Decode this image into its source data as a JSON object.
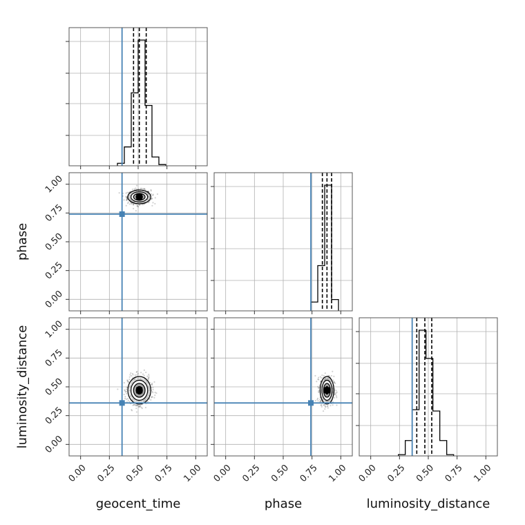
{
  "chart_data": {
    "type": "corner",
    "parameters": [
      "geocent_time",
      "phase",
      "luminosity_distance"
    ],
    "axis_range": [
      -0.1,
      1.1
    ],
    "ticks": [
      0.0,
      0.25,
      0.5,
      0.75,
      1.0
    ],
    "tick_labels": [
      "0.00",
      "0.25",
      "0.50",
      "0.75",
      "1.00"
    ],
    "grid": true,
    "truths": {
      "color": "#4682b4",
      "values": {
        "geocent_time": 0.36,
        "phase": 0.74,
        "luminosity_distance": 0.36
      }
    },
    "histogram_color": "#000000",
    "histograms": [
      {
        "parameter": "geocent_time",
        "bin_edges": [
          0.32,
          0.38,
          0.44,
          0.5,
          0.56,
          0.62,
          0.68,
          0.74
        ],
        "counts": [
          0.02,
          0.15,
          0.58,
          1.0,
          0.48,
          0.07,
          0.01
        ],
        "quantiles": [
          0.46,
          0.51,
          0.57
        ]
      },
      {
        "parameter": "phase",
        "bin_edges": [
          0.74,
          0.8,
          0.86,
          0.92,
          0.98
        ],
        "counts": [
          0.07,
          0.36,
          1.0,
          0.09
        ],
        "quantiles": [
          0.84,
          0.88,
          0.92
        ]
      },
      {
        "parameter": "luminosity_distance",
        "bin_edges": [
          0.24,
          0.3,
          0.36,
          0.42,
          0.48,
          0.54,
          0.6,
          0.66,
          0.72
        ],
        "counts": [
          0.01,
          0.12,
          0.36,
          0.98,
          0.76,
          0.35,
          0.12,
          0.01
        ],
        "quantiles": [
          0.4,
          0.47,
          0.53
        ]
      }
    ],
    "scatter_panels": [
      {
        "x": "geocent_time",
        "y": "phase",
        "center": [
          0.51,
          0.89
        ],
        "spread": [
          0.05,
          0.03
        ]
      },
      {
        "x": "geocent_time",
        "y": "luminosity_distance",
        "center": [
          0.51,
          0.47
        ],
        "spread": [
          0.05,
          0.06
        ]
      },
      {
        "x": "phase",
        "y": "luminosity_distance",
        "center": [
          0.88,
          0.47
        ],
        "spread": [
          0.03,
          0.06
        ]
      }
    ]
  }
}
